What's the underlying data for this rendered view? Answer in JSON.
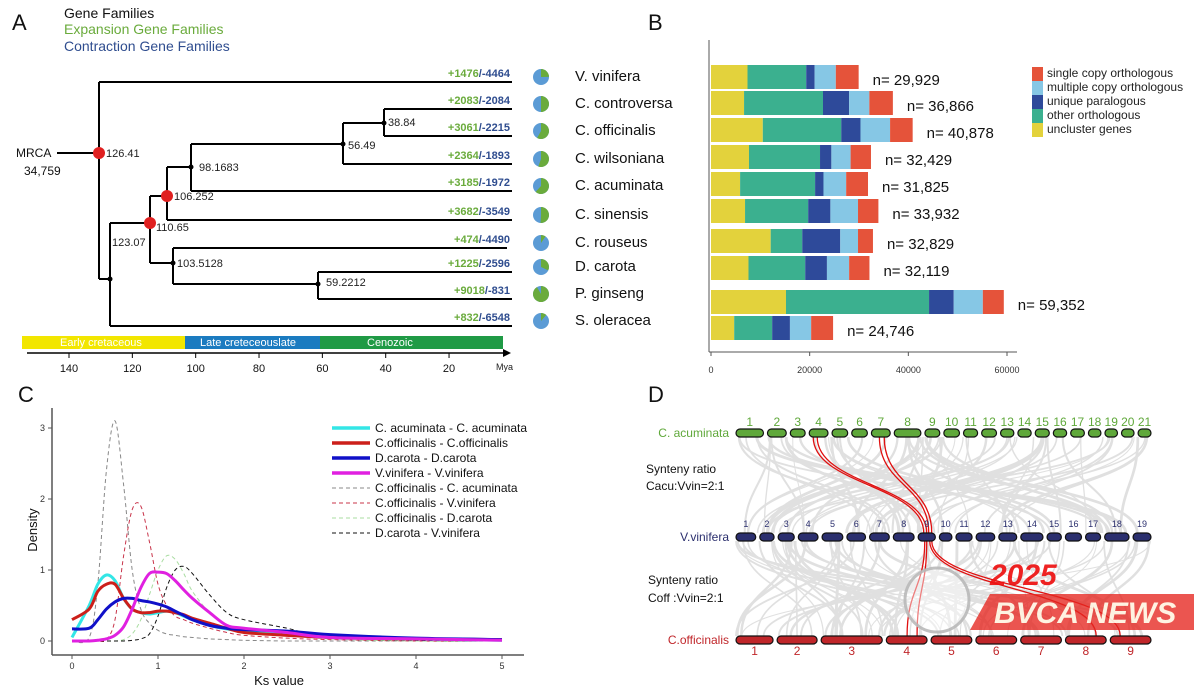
{
  "panel_labels": {
    "a": "A",
    "b": "B",
    "c": "C",
    "d": "D"
  },
  "panel_a": {
    "legend": {
      "gene_families": "Gene Families",
      "expansion": "Expansion Gene Families",
      "contraction": "Contraction Gene Families"
    },
    "colors": {
      "expansion": "#6aab3c",
      "contraction": "#2f4d8f",
      "pie_contraction": "#5b9bd5",
      "pie_expansion": "#6aab3c",
      "calibration_node": "#e02020"
    },
    "mrca_label": "MRCA",
    "mrca_count": "34,759",
    "node_ages": [
      "126.41",
      "123.07",
      "110.65",
      "106.252",
      "98.1683",
      "56.49",
      "38.84",
      "103.5128",
      "59.2212"
    ],
    "taxa": [
      {
        "name": "V. vinifera",
        "expansion": "+1476",
        "contraction": "/-4464",
        "exp": 1476,
        "con": 4464
      },
      {
        "name": "C. controversa",
        "expansion": "+2083",
        "contraction": "/-2084",
        "exp": 2083,
        "con": 2084
      },
      {
        "name": "C. officinalis",
        "expansion": "+3061",
        "contraction": "/-2215",
        "exp": 3061,
        "con": 2215
      },
      {
        "name": "C. wilsoniana",
        "expansion": "+2364",
        "contraction": "/-1893",
        "exp": 2364,
        "con": 1893
      },
      {
        "name": "C. acuminata",
        "expansion": "+3185",
        "contraction": "/-1972",
        "exp": 3185,
        "con": 1972
      },
      {
        "name": "C. sinensis",
        "expansion": "+3682",
        "contraction": "/-3549",
        "exp": 3682,
        "con": 3549
      },
      {
        "name": "C. rouseus",
        "expansion": "+474",
        "contraction": "/-4490",
        "exp": 474,
        "con": 4490
      },
      {
        "name": "D. carota",
        "expansion": "+1225",
        "contraction": "/-2596",
        "exp": 1225,
        "con": 2596
      },
      {
        "name": "P. ginseng",
        "expansion": "+9018",
        "contraction": "/-831",
        "exp": 9018,
        "con": 831
      },
      {
        "name": "S. oleracea",
        "expansion": "+832",
        "contraction": "/-6548",
        "exp": 832,
        "con": 6548
      }
    ],
    "eras": [
      {
        "label": "Early cretaceous",
        "color": "#f2e600"
      },
      {
        "label": "Late creteceouslate",
        "color": "#1b7bc0"
      },
      {
        "label": "Cenozoic",
        "color": "#1f9a45"
      }
    ],
    "time_ticks": [
      "140",
      "120",
      "100",
      "80",
      "60",
      "40",
      "20"
    ],
    "time_unit": "Mya"
  },
  "chart_data": [
    {
      "type": "bar",
      "orientation": "horizontal-stacked",
      "categories": [
        "V. vinifera",
        "C. controversa",
        "C. officinalis",
        "C. wilsoniana",
        "C. acuminata",
        "C. sinensis",
        "C. rouseus",
        "D. carota",
        "P. ginseng",
        "S. oleracea"
      ],
      "totals": [
        "n= 29,929",
        "n= 36,866",
        "n= 40,878",
        "n= 32,429",
        "n= 31,825",
        "n= 33,932",
        "n= 32,829",
        "n= 32,119",
        "n= 59,352",
        "n= 24,746"
      ],
      "series": [
        {
          "name": "uncluster genes",
          "color": "#e3d23c",
          "values": [
            7400,
            6700,
            10500,
            7700,
            5900,
            6900,
            12100,
            7600,
            15200,
            4700
          ]
        },
        {
          "name": "other  orthologous",
          "color": "#3bb08f",
          "values": [
            11900,
            16000,
            15900,
            14400,
            15200,
            12800,
            6400,
            11500,
            29000,
            7700
          ]
        },
        {
          "name": "unique  paralogous",
          "color": "#2e4a9a",
          "values": [
            1700,
            5300,
            3900,
            2300,
            1700,
            4500,
            7700,
            4400,
            5000,
            3600
          ]
        },
        {
          "name": "multiple copy orthologous",
          "color": "#86c7e5",
          "values": [
            4300,
            4100,
            6000,
            3900,
            4600,
            5600,
            3600,
            4500,
            5900,
            4300
          ]
        },
        {
          "name": "single copy orthologous",
          "color": "#e5533a",
          "values": [
            4629,
            4766,
            4578,
            4129,
            4425,
            4132,
            3029,
            4119,
            4252,
            4446
          ]
        }
      ],
      "xlim": [
        0,
        60000
      ],
      "xticks": [
        "0",
        "20000",
        "40000",
        "60000"
      ],
      "legend": "top-right"
    },
    {
      "type": "line",
      "xlabel": "Ks value",
      "ylabel": "Density",
      "xlim": [
        0,
        5
      ],
      "ylim": [
        0,
        3.2
      ],
      "xticks": [
        "0",
        "1",
        "2",
        "3",
        "4",
        "5"
      ],
      "yticks": [
        "0",
        "1",
        "2",
        "3"
      ],
      "legend": "top-right",
      "x": [
        0,
        0.2,
        0.3,
        0.4,
        0.5,
        0.6,
        0.7,
        0.8,
        0.9,
        1.0,
        1.1,
        1.2,
        1.3,
        1.4,
        1.6,
        1.8,
        2.0,
        2.5,
        3,
        4,
        5
      ],
      "series": [
        {
          "name": "C. acuminata - C. acuminata",
          "color": "#33e6e6",
          "style": "solid",
          "values": [
            0.05,
            0.5,
            0.8,
            0.93,
            0.85,
            0.6,
            0.45,
            0.4,
            0.38,
            0.4,
            0.42,
            0.4,
            0.35,
            0.3,
            0.22,
            0.17,
            0.14,
            0.1,
            0.06,
            0.03,
            0.01
          ]
        },
        {
          "name": "C.officinalis - C.officinalis",
          "color": "#cc1f1a",
          "style": "solid",
          "values": [
            0.3,
            0.45,
            0.7,
            0.8,
            0.8,
            0.6,
            0.45,
            0.4,
            0.4,
            0.42,
            0.42,
            0.4,
            0.37,
            0.32,
            0.25,
            0.18,
            0.12,
            0.08,
            0.05,
            0.03,
            0.02
          ]
        },
        {
          "name": "D.carota - D.carota",
          "color": "#1010c8",
          "style": "solid",
          "values": [
            0.17,
            0.18,
            0.3,
            0.45,
            0.55,
            0.6,
            0.6,
            0.57,
            0.55,
            0.52,
            0.48,
            0.42,
            0.36,
            0.3,
            0.22,
            0.18,
            0.16,
            0.14,
            0.09,
            0.04,
            0.02
          ]
        },
        {
          "name": "V.vinifera - V.vinifera",
          "color": "#e020e0",
          "style": "solid",
          "values": [
            0,
            0,
            0.01,
            0.03,
            0.08,
            0.2,
            0.45,
            0.75,
            0.95,
            0.97,
            0.95,
            0.85,
            0.72,
            0.6,
            0.4,
            0.22,
            0.18,
            0.12,
            0.05,
            0.03,
            0.01
          ]
        },
        {
          "name": "C.officinalis - C. acuminata",
          "color": "#888888",
          "style": "dashed",
          "values": [
            0,
            0.05,
            0.8,
            2.4,
            3.1,
            2.2,
            1.0,
            0.45,
            0.25,
            0.15,
            0.1,
            0.08,
            0.06,
            0.05,
            0.03,
            0.02,
            0.01,
            0,
            0,
            0,
            0
          ]
        },
        {
          "name": "C.officinalis - V.vinifera",
          "color": "#c8344a",
          "style": "dashed",
          "values": [
            0,
            0,
            0,
            0.02,
            0.3,
            1.2,
            1.85,
            1.9,
            1.4,
            0.8,
            0.5,
            0.35,
            0.3,
            0.25,
            0.18,
            0.12,
            0.08,
            0.04,
            0.02,
            0,
            0
          ]
        },
        {
          "name": "C.officinalis - D.carota",
          "color": "#a8dca0",
          "style": "dashed",
          "values": [
            0,
            0,
            0,
            0,
            0,
            0.02,
            0.1,
            0.3,
            0.65,
            1.0,
            1.2,
            1.15,
            0.95,
            0.7,
            0.4,
            0.22,
            0.14,
            0.08,
            0.03,
            0,
            0
          ]
        },
        {
          "name": "D.carota - V.vinifera",
          "color": "#111111",
          "style": "dashed",
          "values": [
            0,
            0,
            0,
            0,
            0,
            0,
            0.01,
            0.03,
            0.1,
            0.35,
            0.75,
            1.0,
            1.05,
            0.95,
            0.65,
            0.4,
            0.3,
            0.18,
            0.05,
            0.01,
            0
          ]
        }
      ]
    }
  ],
  "panel_d": {
    "genomes": [
      {
        "name": "C. acuminata",
        "color": "#5fa83a",
        "chromosomes": [
          "1",
          "2",
          "3",
          "4",
          "5",
          "6",
          "7",
          "8",
          "9",
          "10",
          "11",
          "12",
          "13",
          "14",
          "15",
          "16",
          "17",
          "18",
          "19",
          "20",
          "21"
        ]
      },
      {
        "name": "V.vinifera",
        "color": "#2b2f6e",
        "chromosomes": [
          "1",
          "2",
          "3",
          "4",
          "5",
          "6",
          "7",
          "8",
          "9",
          "10",
          "11",
          "12",
          "13",
          "14",
          "15",
          "16",
          "17",
          "18",
          "19"
        ]
      },
      {
        "name": "C.officinalis",
        "color": "#c0262a",
        "chromosomes": [
          "1",
          "2",
          "3",
          "4",
          "5",
          "6",
          "7",
          "8",
          "9"
        ]
      }
    ],
    "ratio1_title": "Synteny ratio",
    "ratio1": "Cacu:Vvin=2:1",
    "ratio2_title": "Synteny ratio",
    "ratio2": "Coff :Vvin=2:1",
    "watermark_year": "2025",
    "watermark_text": "BVCA NEWS"
  }
}
